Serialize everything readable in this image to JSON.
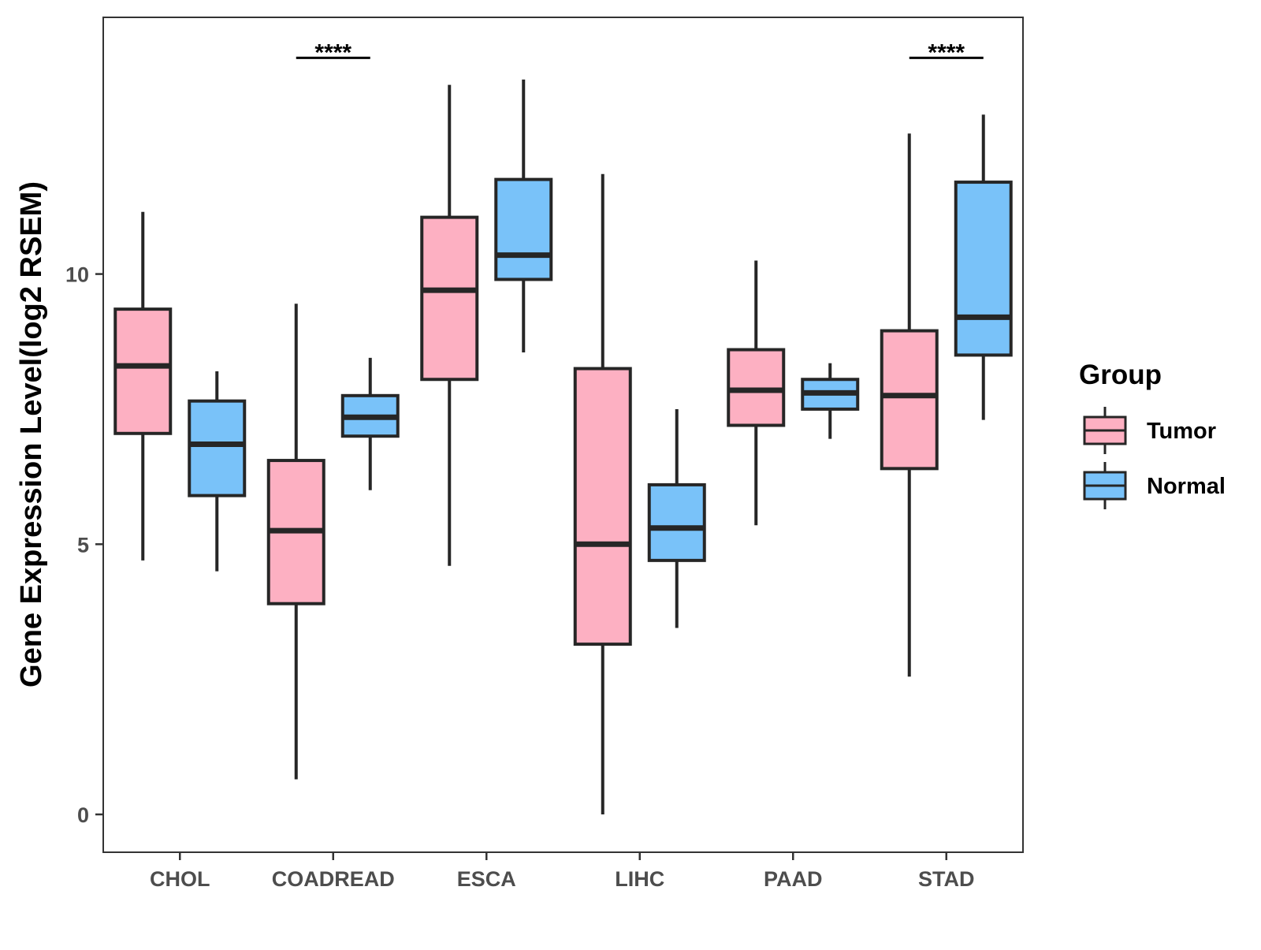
{
  "chart_data": {
    "type": "box",
    "title": "",
    "xlabel": "",
    "ylabel": "Gene Expression Level(log2 RSEM)",
    "ylim": [
      -0.7,
      14.75
    ],
    "yticks": [
      0,
      5,
      10
    ],
    "grid": false,
    "categories": [
      "CHOL",
      "COADREAD",
      "ESCA",
      "LIHC",
      "PAAD",
      "STAD"
    ],
    "legend": {
      "title": "Group",
      "position": "right",
      "entries": [
        "Tumor",
        "Normal"
      ]
    },
    "colors": {
      "Tumor": "#fdb0c2",
      "Normal": "#79c2f9",
      "stroke": "#262626",
      "frame": "#333333"
    },
    "series": [
      {
        "name": "Tumor",
        "boxes": [
          {
            "whisker_low": 4.7,
            "q1": 7.05,
            "median": 8.3,
            "q3": 9.35,
            "whisker_high": 11.15
          },
          {
            "whisker_low": 0.65,
            "q1": 3.9,
            "median": 5.25,
            "q3": 6.55,
            "whisker_high": 9.45
          },
          {
            "whisker_low": 4.6,
            "q1": 8.05,
            "median": 9.7,
            "q3": 11.05,
            "whisker_high": 13.5
          },
          {
            "whisker_low": 0.0,
            "q1": 3.15,
            "median": 5.0,
            "q3": 8.25,
            "whisker_high": 11.85
          },
          {
            "whisker_low": 5.35,
            "q1": 7.2,
            "median": 7.85,
            "q3": 8.6,
            "whisker_high": 10.25
          },
          {
            "whisker_low": 2.55,
            "q1": 6.4,
            "median": 7.75,
            "q3": 8.95,
            "whisker_high": 12.6
          }
        ]
      },
      {
        "name": "Normal",
        "boxes": [
          {
            "whisker_low": 4.5,
            "q1": 5.9,
            "median": 6.85,
            "q3": 7.65,
            "whisker_high": 8.2
          },
          {
            "whisker_low": 6.0,
            "q1": 7.0,
            "median": 7.35,
            "q3": 7.75,
            "whisker_high": 8.45
          },
          {
            "whisker_low": 8.55,
            "q1": 9.9,
            "median": 10.35,
            "q3": 11.75,
            "whisker_high": 13.6
          },
          {
            "whisker_low": 3.45,
            "q1": 4.7,
            "median": 5.3,
            "q3": 6.1,
            "whisker_high": 7.5
          },
          {
            "whisker_low": 6.95,
            "q1": 7.5,
            "median": 7.8,
            "q3": 8.05,
            "whisker_high": 8.35
          },
          {
            "whisker_low": 7.3,
            "q1": 8.5,
            "median": 9.2,
            "q3": 11.7,
            "whisker_high": 12.95
          }
        ]
      }
    ],
    "annotations": [
      {
        "category": "COADREAD",
        "label": "****",
        "y": 14.0
      },
      {
        "category": "STAD",
        "label": "****",
        "y": 14.0
      }
    ]
  }
}
